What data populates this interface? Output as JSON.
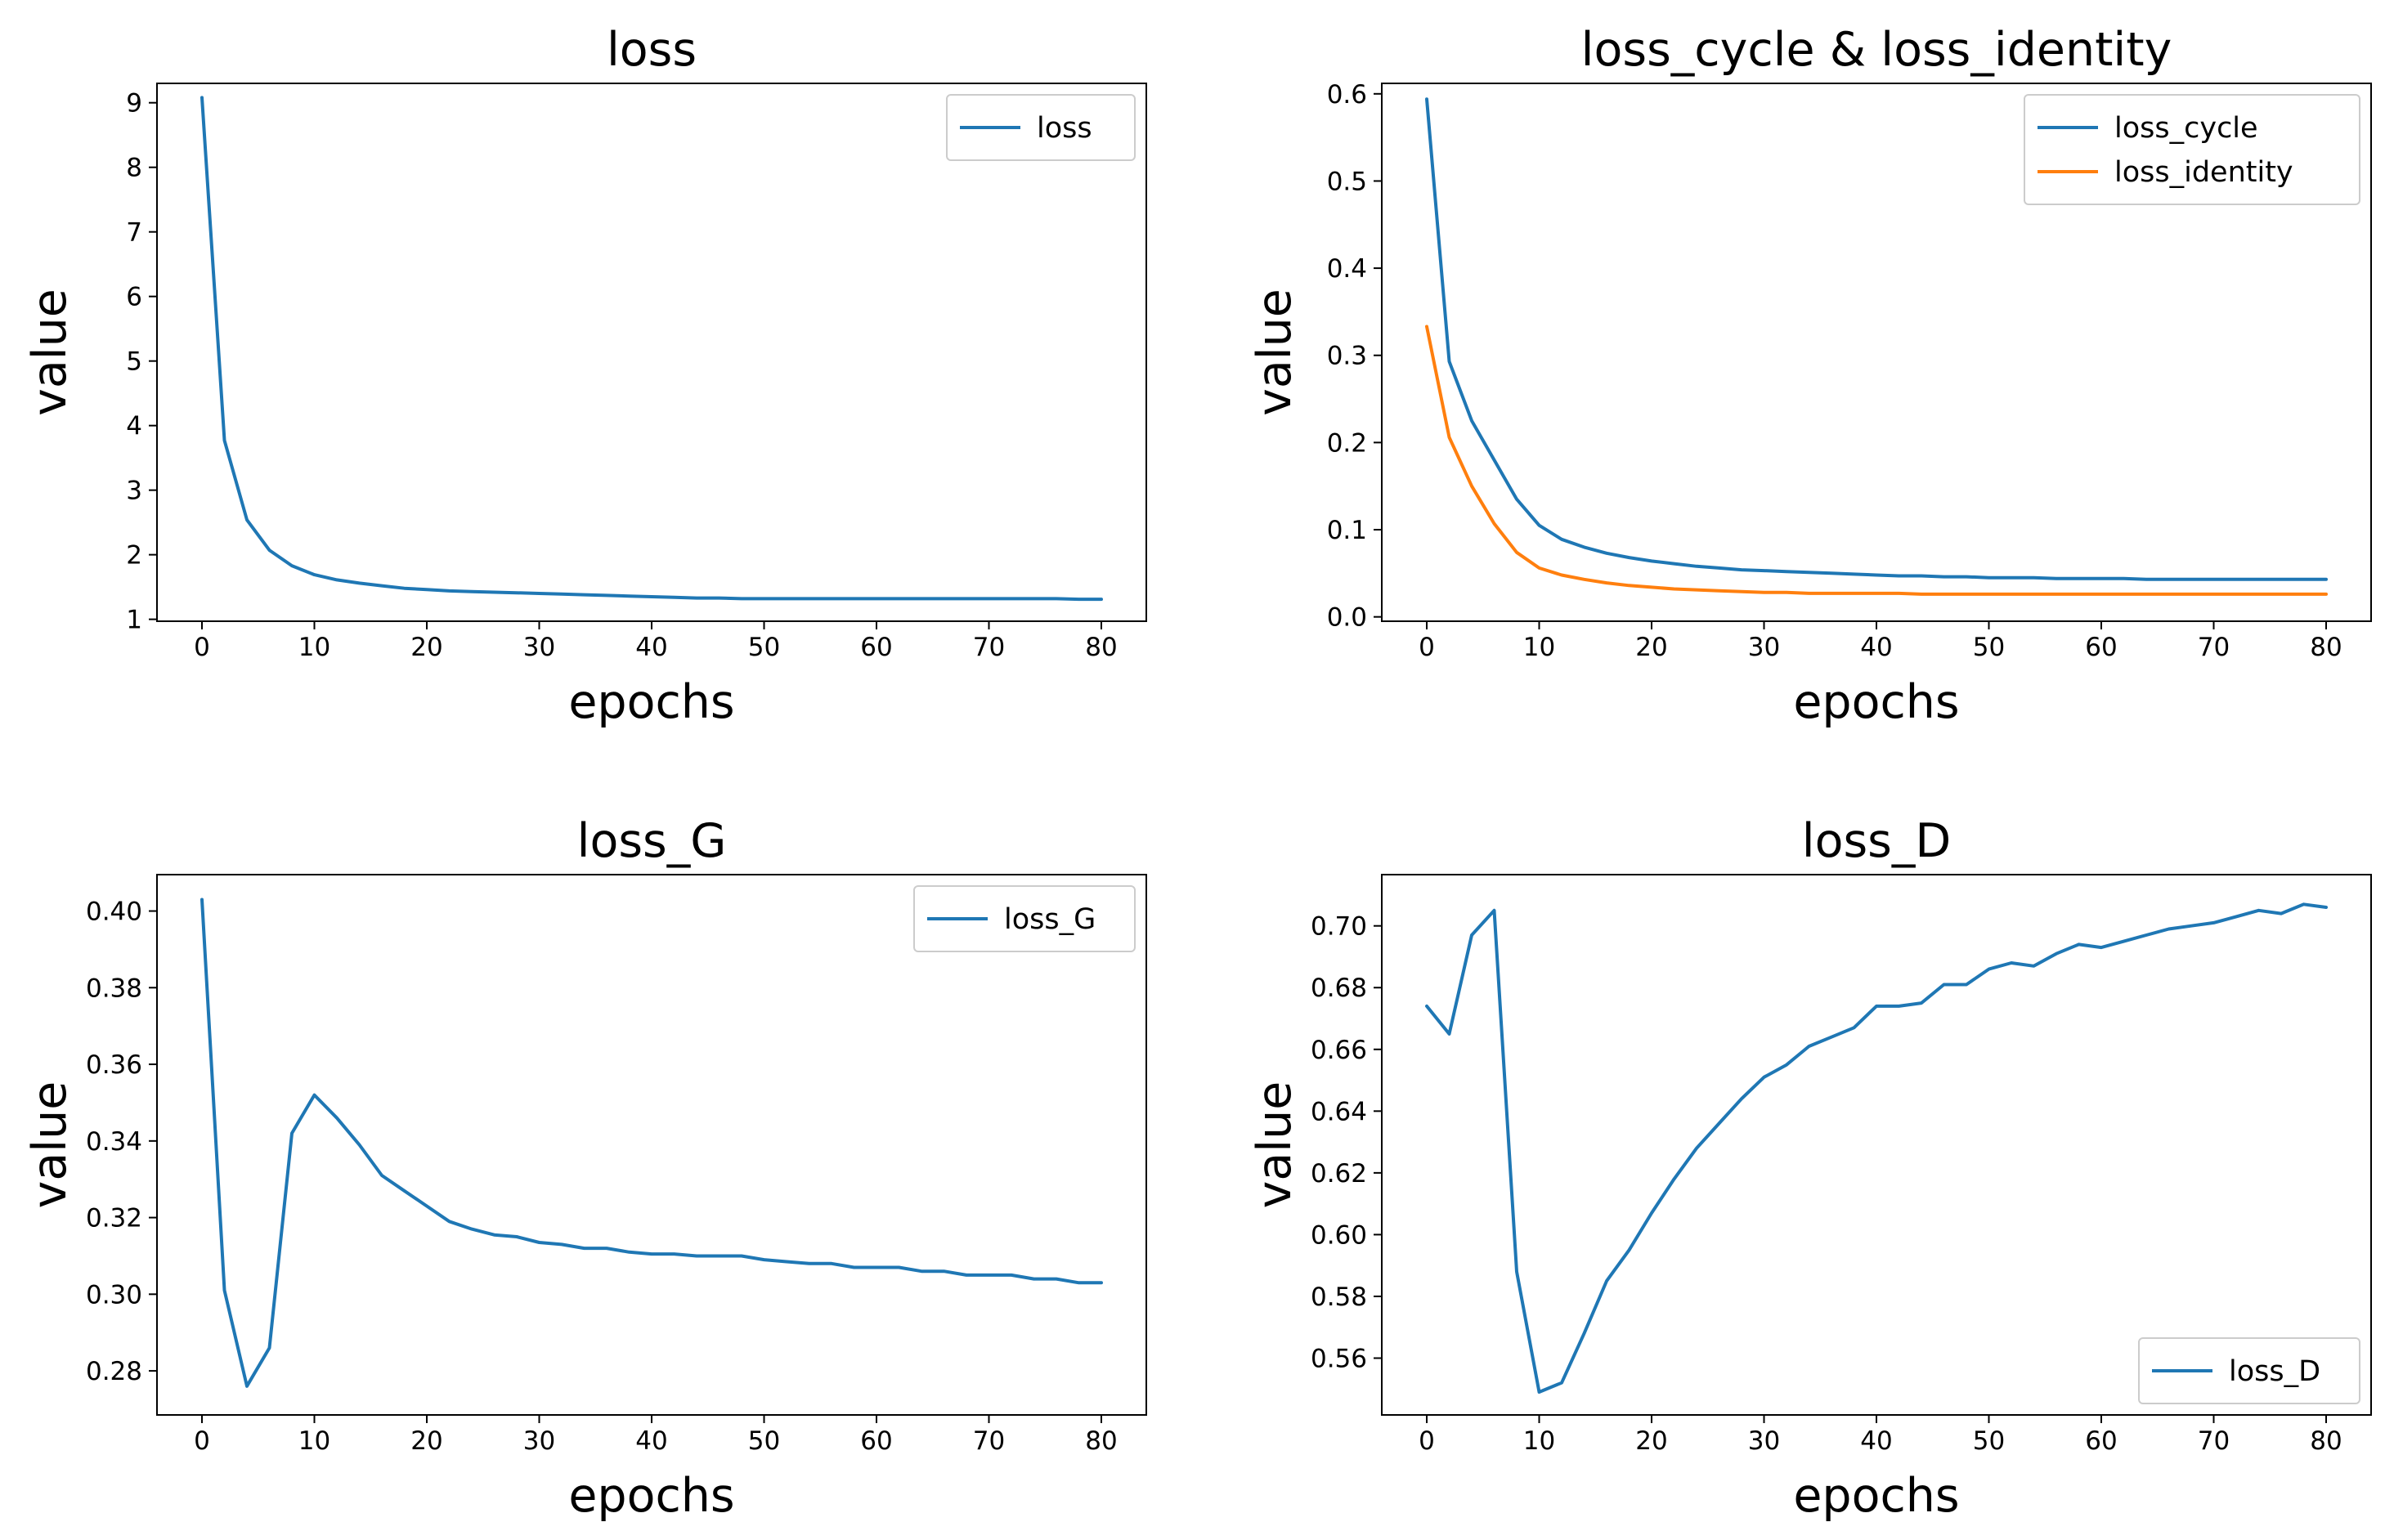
{
  "colors": {
    "series_1": "#1f77b4",
    "series_2": "#ff7f0e",
    "axes": "#000000",
    "legend_border": "#cccccc",
    "background": "#ffffff"
  },
  "chart_data": [
    {
      "type": "line",
      "title": "loss",
      "xlabel": "epochs",
      "ylabel": "value",
      "xlim": [
        -4.0,
        84.0
      ],
      "ylim": [
        0.97,
        9.3
      ],
      "xticks": [
        0,
        10,
        20,
        30,
        40,
        50,
        60,
        70,
        80
      ],
      "yticks": [
        1,
        2,
        3,
        4,
        5,
        6,
        7,
        8,
        9
      ],
      "tick_decimals": 0,
      "legend_location": "upper right",
      "x": [
        0,
        2,
        4,
        6,
        8,
        10,
        12,
        14,
        16,
        18,
        20,
        22,
        24,
        26,
        28,
        30,
        32,
        34,
        36,
        38,
        40,
        42,
        44,
        46,
        48,
        50,
        52,
        54,
        56,
        58,
        60,
        62,
        64,
        66,
        68,
        70,
        72,
        74,
        76,
        78,
        80
      ],
      "series": [
        {
          "name": "loss",
          "values": [
            9.08,
            3.77,
            2.54,
            2.07,
            1.83,
            1.69,
            1.61,
            1.56,
            1.52,
            1.48,
            1.46,
            1.44,
            1.43,
            1.42,
            1.41,
            1.4,
            1.39,
            1.38,
            1.37,
            1.36,
            1.35,
            1.34,
            1.33,
            1.33,
            1.32,
            1.32,
            1.32,
            1.32,
            1.32,
            1.32,
            1.32,
            1.32,
            1.32,
            1.32,
            1.32,
            1.32,
            1.32,
            1.32,
            1.32,
            1.31,
            1.31
          ]
        }
      ]
    },
    {
      "type": "line",
      "title": "loss_cycle & loss_identity",
      "xlabel": "epochs",
      "ylabel": "value",
      "xlim": [
        -4.0,
        84.0
      ],
      "ylim": [
        -0.005,
        0.612
      ],
      "xticks": [
        0,
        10,
        20,
        30,
        40,
        50,
        60,
        70,
        80
      ],
      "yticks": [
        0.0,
        0.1,
        0.2,
        0.3,
        0.4,
        0.5,
        0.6
      ],
      "tick_decimals": 1,
      "legend_location": "upper right",
      "x": [
        0,
        2,
        4,
        6,
        8,
        10,
        12,
        14,
        16,
        18,
        20,
        22,
        24,
        26,
        28,
        30,
        32,
        34,
        36,
        38,
        40,
        42,
        44,
        46,
        48,
        50,
        52,
        54,
        56,
        58,
        60,
        62,
        64,
        66,
        68,
        70,
        72,
        74,
        76,
        78,
        80
      ],
      "series": [
        {
          "name": "loss_cycle",
          "values": [
            0.594,
            0.293,
            0.225,
            0.18,
            0.135,
            0.105,
            0.089,
            0.08,
            0.073,
            0.068,
            0.064,
            0.061,
            0.058,
            0.056,
            0.054,
            0.053,
            0.052,
            0.051,
            0.05,
            0.049,
            0.048,
            0.047,
            0.047,
            0.046,
            0.046,
            0.045,
            0.045,
            0.045,
            0.044,
            0.044,
            0.044,
            0.044,
            0.043,
            0.043,
            0.043,
            0.043,
            0.043,
            0.043,
            0.043,
            0.043,
            0.043
          ]
        },
        {
          "name": "loss_identity",
          "values": [
            0.333,
            0.206,
            0.15,
            0.107,
            0.074,
            0.056,
            0.048,
            0.043,
            0.039,
            0.036,
            0.034,
            0.032,
            0.031,
            0.03,
            0.029,
            0.028,
            0.028,
            0.027,
            0.027,
            0.027,
            0.027,
            0.027,
            0.026,
            0.026,
            0.026,
            0.026,
            0.026,
            0.026,
            0.026,
            0.026,
            0.026,
            0.026,
            0.026,
            0.026,
            0.026,
            0.026,
            0.026,
            0.026,
            0.026,
            0.026,
            0.026
          ]
        }
      ]
    },
    {
      "type": "line",
      "title": "loss_G",
      "xlabel": "epochs",
      "ylabel": "value",
      "xlim": [
        -4.0,
        84.0
      ],
      "ylim": [
        0.2685,
        0.4095
      ],
      "xticks": [
        0,
        10,
        20,
        30,
        40,
        50,
        60,
        70,
        80
      ],
      "yticks": [
        0.28,
        0.3,
        0.32,
        0.34,
        0.36,
        0.38,
        0.4
      ],
      "tick_decimals": 2,
      "legend_location": "upper right",
      "x": [
        0,
        2,
        4,
        6,
        8,
        10,
        12,
        14,
        16,
        18,
        20,
        22,
        24,
        26,
        28,
        30,
        32,
        34,
        36,
        38,
        40,
        42,
        44,
        46,
        48,
        50,
        52,
        54,
        56,
        58,
        60,
        62,
        64,
        66,
        68,
        70,
        72,
        74,
        76,
        78,
        80
      ],
      "series": [
        {
          "name": "loss_G",
          "values": [
            0.403,
            0.301,
            0.276,
            0.286,
            0.342,
            0.352,
            0.346,
            0.339,
            0.331,
            0.327,
            0.323,
            0.319,
            0.317,
            0.3155,
            0.315,
            0.3135,
            0.313,
            0.312,
            0.312,
            0.311,
            0.3105,
            0.3105,
            0.31,
            0.31,
            0.31,
            0.309,
            0.3085,
            0.308,
            0.308,
            0.307,
            0.307,
            0.307,
            0.306,
            0.306,
            0.305,
            0.305,
            0.305,
            0.304,
            0.304,
            0.303,
            0.303
          ]
        }
      ]
    },
    {
      "type": "line",
      "title": "loss_D",
      "xlabel": "epochs",
      "ylabel": "value",
      "xlim": [
        -4.0,
        84.0
      ],
      "ylim": [
        0.5416,
        0.7166
      ],
      "xticks": [
        0,
        10,
        20,
        30,
        40,
        50,
        60,
        70,
        80
      ],
      "yticks": [
        0.56,
        0.58,
        0.6,
        0.62,
        0.64,
        0.66,
        0.68,
        0.7
      ],
      "tick_decimals": 2,
      "legend_location": "lower right",
      "x": [
        0,
        2,
        4,
        6,
        8,
        10,
        12,
        14,
        16,
        18,
        20,
        22,
        24,
        26,
        28,
        30,
        32,
        34,
        36,
        38,
        40,
        42,
        44,
        46,
        48,
        50,
        52,
        54,
        56,
        58,
        60,
        62,
        64,
        66,
        68,
        70,
        72,
        74,
        76,
        78,
        80
      ],
      "series": [
        {
          "name": "loss_D",
          "values": [
            0.674,
            0.665,
            0.697,
            0.705,
            0.588,
            0.549,
            0.552,
            0.568,
            0.585,
            0.595,
            0.607,
            0.618,
            0.628,
            0.636,
            0.644,
            0.651,
            0.655,
            0.661,
            0.664,
            0.667,
            0.674,
            0.674,
            0.675,
            0.681,
            0.681,
            0.686,
            0.688,
            0.687,
            0.691,
            0.694,
            0.693,
            0.695,
            0.697,
            0.699,
            0.7,
            0.701,
            0.703,
            0.705,
            0.704,
            0.707,
            0.706
          ]
        }
      ]
    }
  ]
}
